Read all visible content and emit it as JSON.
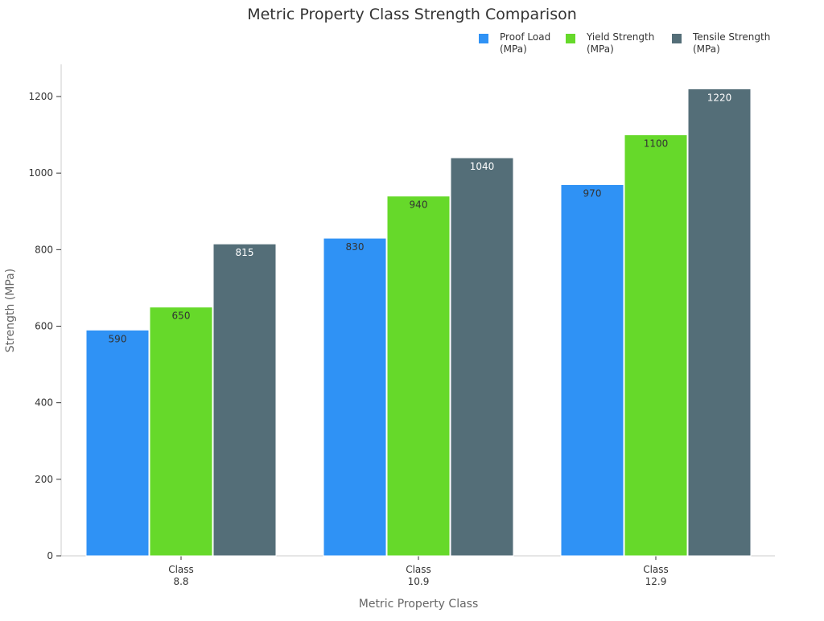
{
  "chart_data": {
    "type": "bar",
    "title": "Metric Property Class Strength Comparison",
    "xlabel": "Metric Property Class",
    "ylabel": "Strength (MPa)",
    "categories": [
      [
        "Class",
        "8.8"
      ],
      [
        "Class",
        "10.9"
      ],
      [
        "Class",
        "12.9"
      ]
    ],
    "series": [
      {
        "name": [
          "Proof Load",
          "(MPa)"
        ],
        "color": "#2f92f5",
        "label_color": "#333333",
        "values": [
          590,
          830,
          970
        ]
      },
      {
        "name": [
          "Yield Strength",
          "(MPa)"
        ],
        "color": "#66d92a",
        "label_color": "#333333",
        "values": [
          650,
          940,
          1100
        ]
      },
      {
        "name": [
          "Tensile Strength",
          "(MPa)"
        ],
        "color": "#546e78",
        "label_color": "#ffffff",
        "values": [
          815,
          1040,
          1220
        ]
      }
    ],
    "ylim": [
      0,
      1280
    ],
    "yticks": [
      0,
      200,
      400,
      600,
      800,
      1000,
      1200
    ],
    "grid": false,
    "legend_position": "top-right"
  }
}
